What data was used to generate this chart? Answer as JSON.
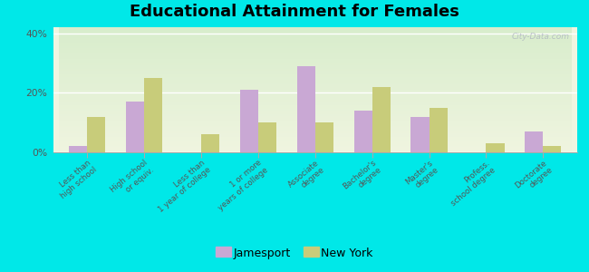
{
  "title": "Educational Attainment for Females",
  "categories": [
    "Less than\nhigh school",
    "High school\nor equiv.",
    "Less than\n1 year of college",
    "1 or more\nyears of college",
    "Associate\ndegree",
    "Bachelor's\ndegree",
    "Master's\ndegree",
    "Profess.\nschool degree",
    "Doctorate\ndegree"
  ],
  "jamesport": [
    2,
    17,
    0,
    21,
    29,
    14,
    12,
    0,
    7
  ],
  "new_york": [
    12,
    25,
    6,
    10,
    10,
    22,
    15,
    3,
    2
  ],
  "jamesport_color": "#c9a8d4",
  "new_york_color": "#c8cc7a",
  "bar_width": 0.32,
  "ylim": [
    0,
    42
  ],
  "yticks": [
    0,
    20,
    40
  ],
  "ytick_labels": [
    "0%",
    "20%",
    "40%"
  ],
  "bg_top_color": "#f0f5e0",
  "bg_bottom_color": "#d8edcc",
  "outer_background": "#00e8e8",
  "title_fontsize": 13,
  "tick_fontsize": 6.2,
  "legend_fontsize": 9,
  "watermark": "City-Data.com"
}
